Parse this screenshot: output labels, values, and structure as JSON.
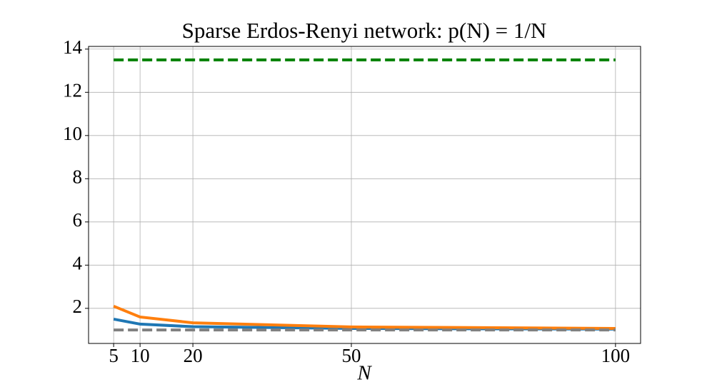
{
  "chart_data": {
    "type": "line",
    "title": "Sparse Erdos-Renyi network: p(N) = 1/N",
    "x_label": "N",
    "x": [
      5,
      10,
      20,
      50,
      100
    ],
    "series": [
      {
        "color": "#1f77b4",
        "linestyle": "solid",
        "values": [
          1.5,
          1.27,
          1.15,
          1.07,
          1.04
        ]
      },
      {
        "color": "#ff7f0e",
        "linestyle": "solid",
        "values": [
          2.1,
          1.6,
          1.33,
          1.14,
          1.07
        ]
      },
      {
        "color": "#008000",
        "linestyle": "dashed",
        "values": [
          13.5,
          13.5,
          13.5,
          13.5,
          13.5
        ]
      },
      {
        "color": "#808080",
        "linestyle": "dashed",
        "values": [
          1.0,
          1.0,
          1.0,
          1.0,
          1.0
        ]
      }
    ],
    "xlim": [
      0.25,
      104.75
    ],
    "ylim": [
      0.375,
      14.125
    ],
    "xticks": [
      5,
      10,
      20,
      50,
      100
    ],
    "yticks": [
      2,
      4,
      6,
      8,
      10,
      12,
      14
    ],
    "grid": true
  }
}
